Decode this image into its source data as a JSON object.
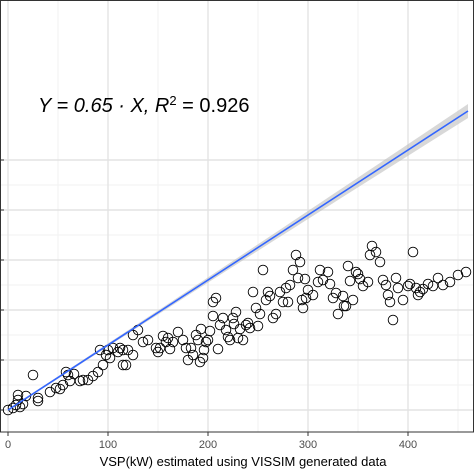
{
  "chart_data": {
    "type": "scatter",
    "title": "",
    "xlabel": "VSP(kW) estimated using VISSIM generated data",
    "ylabel": "",
    "xlim": [
      0,
      460
    ],
    "ylim": [
      -13,
      268
    ],
    "x_ticks": [
      0,
      100,
      200,
      300,
      400
    ],
    "x_tick_labels": [
      "0",
      "100",
      "200",
      "300",
      "400"
    ],
    "x_minor_ticks": [
      50,
      150,
      250,
      350,
      450
    ],
    "y_grid_major": [
      0,
      50,
      100,
      150,
      200,
      250
    ],
    "y_grid_minor": [
      25,
      75,
      125,
      175,
      225
    ],
    "grid": true,
    "annotation": {
      "main": "Y = 0.65 ·  X,  R",
      "sup": "2",
      "tail": " = 0.926",
      "x": 30,
      "y": 188
    },
    "fit": {
      "slope": 0.65,
      "intercept": 0,
      "x_range": [
        0,
        460
      ],
      "color": "#3366ff",
      "band_color": "#bebebe",
      "band_halfwidth_at_max": 6
    },
    "points": [
      [
        0,
        0
      ],
      [
        5,
        2
      ],
      [
        8,
        5
      ],
      [
        10,
        10
      ],
      [
        12,
        3
      ],
      [
        15,
        6
      ],
      [
        18,
        14
      ],
      [
        10,
        15
      ],
      [
        25,
        35
      ],
      [
        30,
        9
      ],
      [
        30,
        12
      ],
      [
        42,
        18
      ],
      [
        48,
        22
      ],
      [
        52,
        21
      ],
      [
        55,
        25
      ],
      [
        58,
        38
      ],
      [
        60,
        35
      ],
      [
        62,
        29
      ],
      [
        66,
        36
      ],
      [
        72,
        29
      ],
      [
        75,
        30
      ],
      [
        80,
        30
      ],
      [
        85,
        34
      ],
      [
        90,
        38
      ],
      [
        92,
        60
      ],
      [
        95,
        45
      ],
      [
        98,
        55
      ],
      [
        100,
        60
      ],
      [
        102,
        52
      ],
      [
        105,
        62
      ],
      [
        110,
        58
      ],
      [
        112,
        62
      ],
      [
        115,
        60
      ],
      [
        115,
        45
      ],
      [
        118,
        45
      ],
      [
        120,
        60
      ],
      [
        125,
        55
      ],
      [
        125,
        75
      ],
      [
        130,
        80
      ],
      [
        135,
        68
      ],
      [
        140,
        70
      ],
      [
        148,
        62
      ],
      [
        150,
        58
      ],
      [
        152,
        62
      ],
      [
        155,
        74
      ],
      [
        158,
        68
      ],
      [
        160,
        72
      ],
      [
        162,
        61
      ],
      [
        165,
        68
      ],
      [
        170,
        78
      ],
      [
        175,
        70
      ],
      [
        178,
        62
      ],
      [
        180,
        50
      ],
      [
        183,
        62
      ],
      [
        185,
        55
      ],
      [
        188,
        75
      ],
      [
        190,
        70
      ],
      [
        192,
        48
      ],
      [
        193,
        81
      ],
      [
        195,
        52
      ],
      [
        196,
        60
      ],
      [
        198,
        68
      ],
      [
        200,
        70
      ],
      [
        202,
        79
      ],
      [
        205,
        94
      ],
      [
        205,
        108
      ],
      [
        208,
        112
      ],
      [
        210,
        61
      ],
      [
        212,
        85
      ],
      [
        215,
        92
      ],
      [
        218,
        80
      ],
      [
        220,
        73
      ],
      [
        222,
        70
      ],
      [
        225,
        92
      ],
      [
        226,
        86
      ],
      [
        228,
        98
      ],
      [
        230,
        72
      ],
      [
        232,
        81
      ],
      [
        235,
        70
      ],
      [
        238,
        85
      ],
      [
        240,
        87
      ],
      [
        242,
        82
      ],
      [
        245,
        118
      ],
      [
        248,
        102
      ],
      [
        250,
        84
      ],
      [
        252,
        96
      ],
      [
        255,
        140
      ],
      [
        258,
        110
      ],
      [
        260,
        118
      ],
      [
        262,
        114
      ],
      [
        265,
        92
      ],
      [
        268,
        96
      ],
      [
        272,
        118
      ],
      [
        275,
        108
      ],
      [
        278,
        122
      ],
      [
        280,
        108
      ],
      [
        282,
        125
      ],
      [
        285,
        140
      ],
      [
        288,
        155
      ],
      [
        290,
        132
      ],
      [
        292,
        148
      ],
      [
        294,
        110
      ],
      [
        295,
        102
      ],
      [
        297,
        131
      ],
      [
        298,
        112
      ],
      [
        300,
        120
      ],
      [
        305,
        115
      ],
      [
        310,
        128
      ],
      [
        312,
        140
      ],
      [
        315,
        130
      ],
      [
        320,
        138
      ],
      [
        322,
        126
      ],
      [
        325,
        112
      ],
      [
        328,
        117
      ],
      [
        330,
        96
      ],
      [
        335,
        114
      ],
      [
        336,
        104
      ],
      [
        338,
        104
      ],
      [
        340,
        144
      ],
      [
        342,
        129
      ],
      [
        345,
        110
      ],
      [
        348,
        138
      ],
      [
        350,
        136
      ],
      [
        352,
        131
      ],
      [
        355,
        124
      ],
      [
        360,
        128
      ],
      [
        362,
        155
      ],
      [
        364,
        164
      ],
      [
        368,
        158
      ],
      [
        372,
        148
      ],
      [
        375,
        130
      ],
      [
        378,
        125
      ],
      [
        380,
        115
      ],
      [
        382,
        108
      ],
      [
        385,
        90
      ],
      [
        388,
        132
      ],
      [
        390,
        122
      ],
      [
        395,
        110
      ],
      [
        400,
        124
      ],
      [
        402,
        126
      ],
      [
        405,
        158
      ],
      [
        408,
        122
      ],
      [
        410,
        115
      ],
      [
        412,
        118
      ],
      [
        415,
        121
      ],
      [
        420,
        126
      ],
      [
        425,
        124
      ],
      [
        430,
        132
      ],
      [
        435,
        125
      ],
      [
        442,
        128
      ],
      [
        450,
        135
      ],
      [
        458,
        138
      ]
    ]
  }
}
